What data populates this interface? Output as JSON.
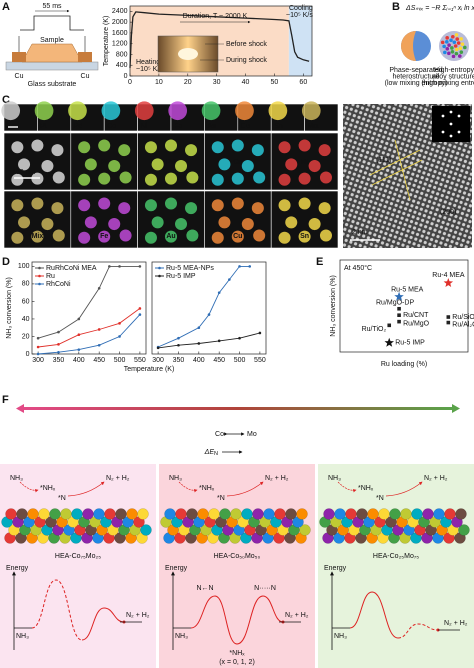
{
  "panels": {
    "A": {
      "label": "A",
      "pulse": "55 ms",
      "sample": "Sample",
      "cu_left": "Cu",
      "cu_right": "Cu",
      "substrate": "Glass substrate",
      "chart": {
        "type": "line",
        "ylabel": "Temperature (K)",
        "xlim": [
          0,
          63
        ],
        "xticks": [
          0,
          10,
          20,
          30,
          40,
          50,
          60
        ],
        "ylim": [
          0,
          2600
        ],
        "yticks": [
          0,
          400,
          800,
          1200,
          1600,
          2000,
          2400
        ],
        "regions": [
          {
            "from": 0,
            "to": 55,
            "color": "#fbdcc6"
          },
          {
            "from": 55,
            "to": 63,
            "color": "#cfe2f4"
          }
        ],
        "series": [
          {
            "color": "#222222",
            "x": [
              0,
              0.5,
              1,
              2,
              5,
              10,
              20,
              30,
              40,
              50,
              53,
              55,
              56,
              57,
              58,
              60,
              62
            ],
            "values": [
              300,
              1500,
              2200,
              2380,
              2350,
              2300,
              2250,
              2200,
              2150,
              2100,
              2080,
              2050,
              1500,
              900,
              700,
              600,
              550
            ]
          }
        ],
        "duration": "Duration, T ~ 2000 K",
        "heating": [
          "Heating",
          "~10⁵ K/s"
        ],
        "cooling": [
          "Cooling",
          "~10⁵ K/s"
        ],
        "before": "Before shock",
        "during": "During shock"
      }
    },
    "B": {
      "label": "B",
      "formula": "ΔSₘᵢₓ = −R Σᵢ₌₁ⁿ xᵢ ln xᵢ",
      "left": [
        "Phase-separated",
        "heterostructure",
        "(low mixing entropy)"
      ],
      "right": [
        "High-entropy",
        "alloy structure",
        "(high mixing entropy)"
      ]
    },
    "C": {
      "label": "C",
      "top_row": [
        "Pt",
        "Pd",
        "Co",
        "Ni",
        "Fe",
        "Au",
        "Cu",
        "Sn",
        "Mix"
      ],
      "row1": [
        "Pt",
        "Pd",
        "Co",
        "Ni"
      ],
      "row2": [
        "Mix",
        "Fe",
        "Au",
        "Cu",
        "Sn"
      ],
      "scale": "100 nm",
      "hrtem_scale": "2 nm",
      "plane1": "(111)",
      "plane2": "(200)"
    },
    "D": {
      "label": "D",
      "ylabel": "NH₃ conversion (%)",
      "xlabel": "Temperature (K)",
      "charts": [
        {
          "type": "line",
          "xlim": [
            285,
            565
          ],
          "xticks": [
            300,
            350,
            400,
            450,
            500,
            550
          ],
          "ylim": [
            0,
            105
          ],
          "yticks": [
            0,
            20,
            40,
            60,
            80,
            100
          ],
          "series": [
            {
              "name": "RuRhCoNi MEA",
              "color": "#555555",
              "x": [
                300,
                350,
                400,
                450,
                475,
                500,
                550
              ],
              "values": [
                18,
                25,
                40,
                75,
                100,
                100,
                100
              ]
            },
            {
              "name": "Ru",
              "color": "#e0302a",
              "x": [
                300,
                350,
                400,
                450,
                500,
                550
              ],
              "values": [
                8,
                11,
                22,
                28,
                35,
                52
              ]
            },
            {
              "name": "RhCoNi",
              "color": "#2f6db5",
              "x": [
                300,
                350,
                400,
                450,
                500,
                550
              ],
              "values": [
                0,
                2,
                5,
                10,
                20,
                45
              ]
            }
          ]
        },
        {
          "type": "line",
          "xlim": [
            285,
            565
          ],
          "xticks": [
            300,
            350,
            400,
            450,
            500,
            550
          ],
          "ylim": [
            0,
            105
          ],
          "series": [
            {
              "name": "Ru-5 MEA-NPs",
              "color": "#2f6db5",
              "x": [
                300,
                350,
                400,
                425,
                450,
                475,
                500,
                525
              ],
              "values": [
                8,
                18,
                30,
                45,
                70,
                85,
                100,
                100
              ]
            },
            {
              "name": "Ru-5 IMP",
              "color": "#222222",
              "x": [
                300,
                350,
                400,
                450,
                500,
                550
              ],
              "values": [
                7,
                10,
                12,
                15,
                18,
                24
              ]
            }
          ]
        }
      ]
    },
    "E": {
      "label": "E",
      "chart": {
        "type": "scatter",
        "title": "At 450°C",
        "xlabel": "Ru loading (%)",
        "ylabel": "NH₃ conversion (%)",
        "xlim": [
          0,
          13
        ],
        "ylim": [
          0,
          100
        ],
        "points": [
          {
            "label": "Ru-4 MEA",
            "x": 11,
            "y": 75,
            "color": "#e0302a",
            "marker": "star"
          },
          {
            "label": "Ru-5 MEA",
            "x": 6,
            "y": 60,
            "color": "#2f6db5",
            "marker": "star"
          },
          {
            "label": "Ru/MgO-DP",
            "x": 6,
            "y": 47,
            "color": "#222222",
            "marker": "square"
          },
          {
            "label": "Ru/CNT",
            "x": 6,
            "y": 40,
            "color": "#222222",
            "marker": "square"
          },
          {
            "label": "Ru/MgO",
            "x": 6,
            "y": 33,
            "color": "#222222",
            "marker": "square"
          },
          {
            "label": "Ru/TiO₂",
            "x": 5,
            "y": 29,
            "color": "#222222",
            "marker": "square"
          },
          {
            "label": "Ru/SiO₂",
            "x": 11,
            "y": 38,
            "color": "#222222",
            "marker": "square"
          },
          {
            "label": "Ru/Al₂O₃",
            "x": 11,
            "y": 32,
            "color": "#222222",
            "marker": "square"
          },
          {
            "label": "Ru-5 IMP",
            "x": 5,
            "y": 10,
            "color": "#111111",
            "marker": "star"
          }
        ]
      }
    },
    "F": {
      "label": "F",
      "left": "Co",
      "right": "Mo",
      "delta": "ΔE",
      "delta_sub": "N",
      "columns": [
        {
          "bg": "#fbe4f0",
          "nh3": "NH₃",
          "nhx": "*NHₓ",
          "n": "*N",
          "product": "N₂ + H₂",
          "alloy": "HEA-Co₇₅Mo₂₅",
          "energy": "Energy",
          "e_start": "NH₃",
          "e_end": "N₂ + H₂"
        },
        {
          "bg": "#fbd5dc",
          "nh3": "NH₃",
          "nhx": "*NHₓ",
          "n": "*N",
          "product": "N₂ + H₂",
          "alloy": "HEA-Co₅₀Mo₅₀",
          "energy": "Energy",
          "e_start": "NH₃",
          "e_end": "N₂ + H₂",
          "n_n1": "N←N",
          "n_n2": "N·····N",
          "well": "*NHₓ",
          "well_note": "(x = 0, 1, 2)"
        },
        {
          "bg": "#e6f3dc",
          "nh3": "NH₃",
          "nhx": "*NHₓ",
          "n": "*N",
          "product": "N₂ + H₂",
          "alloy": "HEA-Co₂₅Mo₇₅",
          "energy": "Energy",
          "e_start": "NH₃",
          "e_end": "N₂ + H₂"
        }
      ]
    }
  }
}
